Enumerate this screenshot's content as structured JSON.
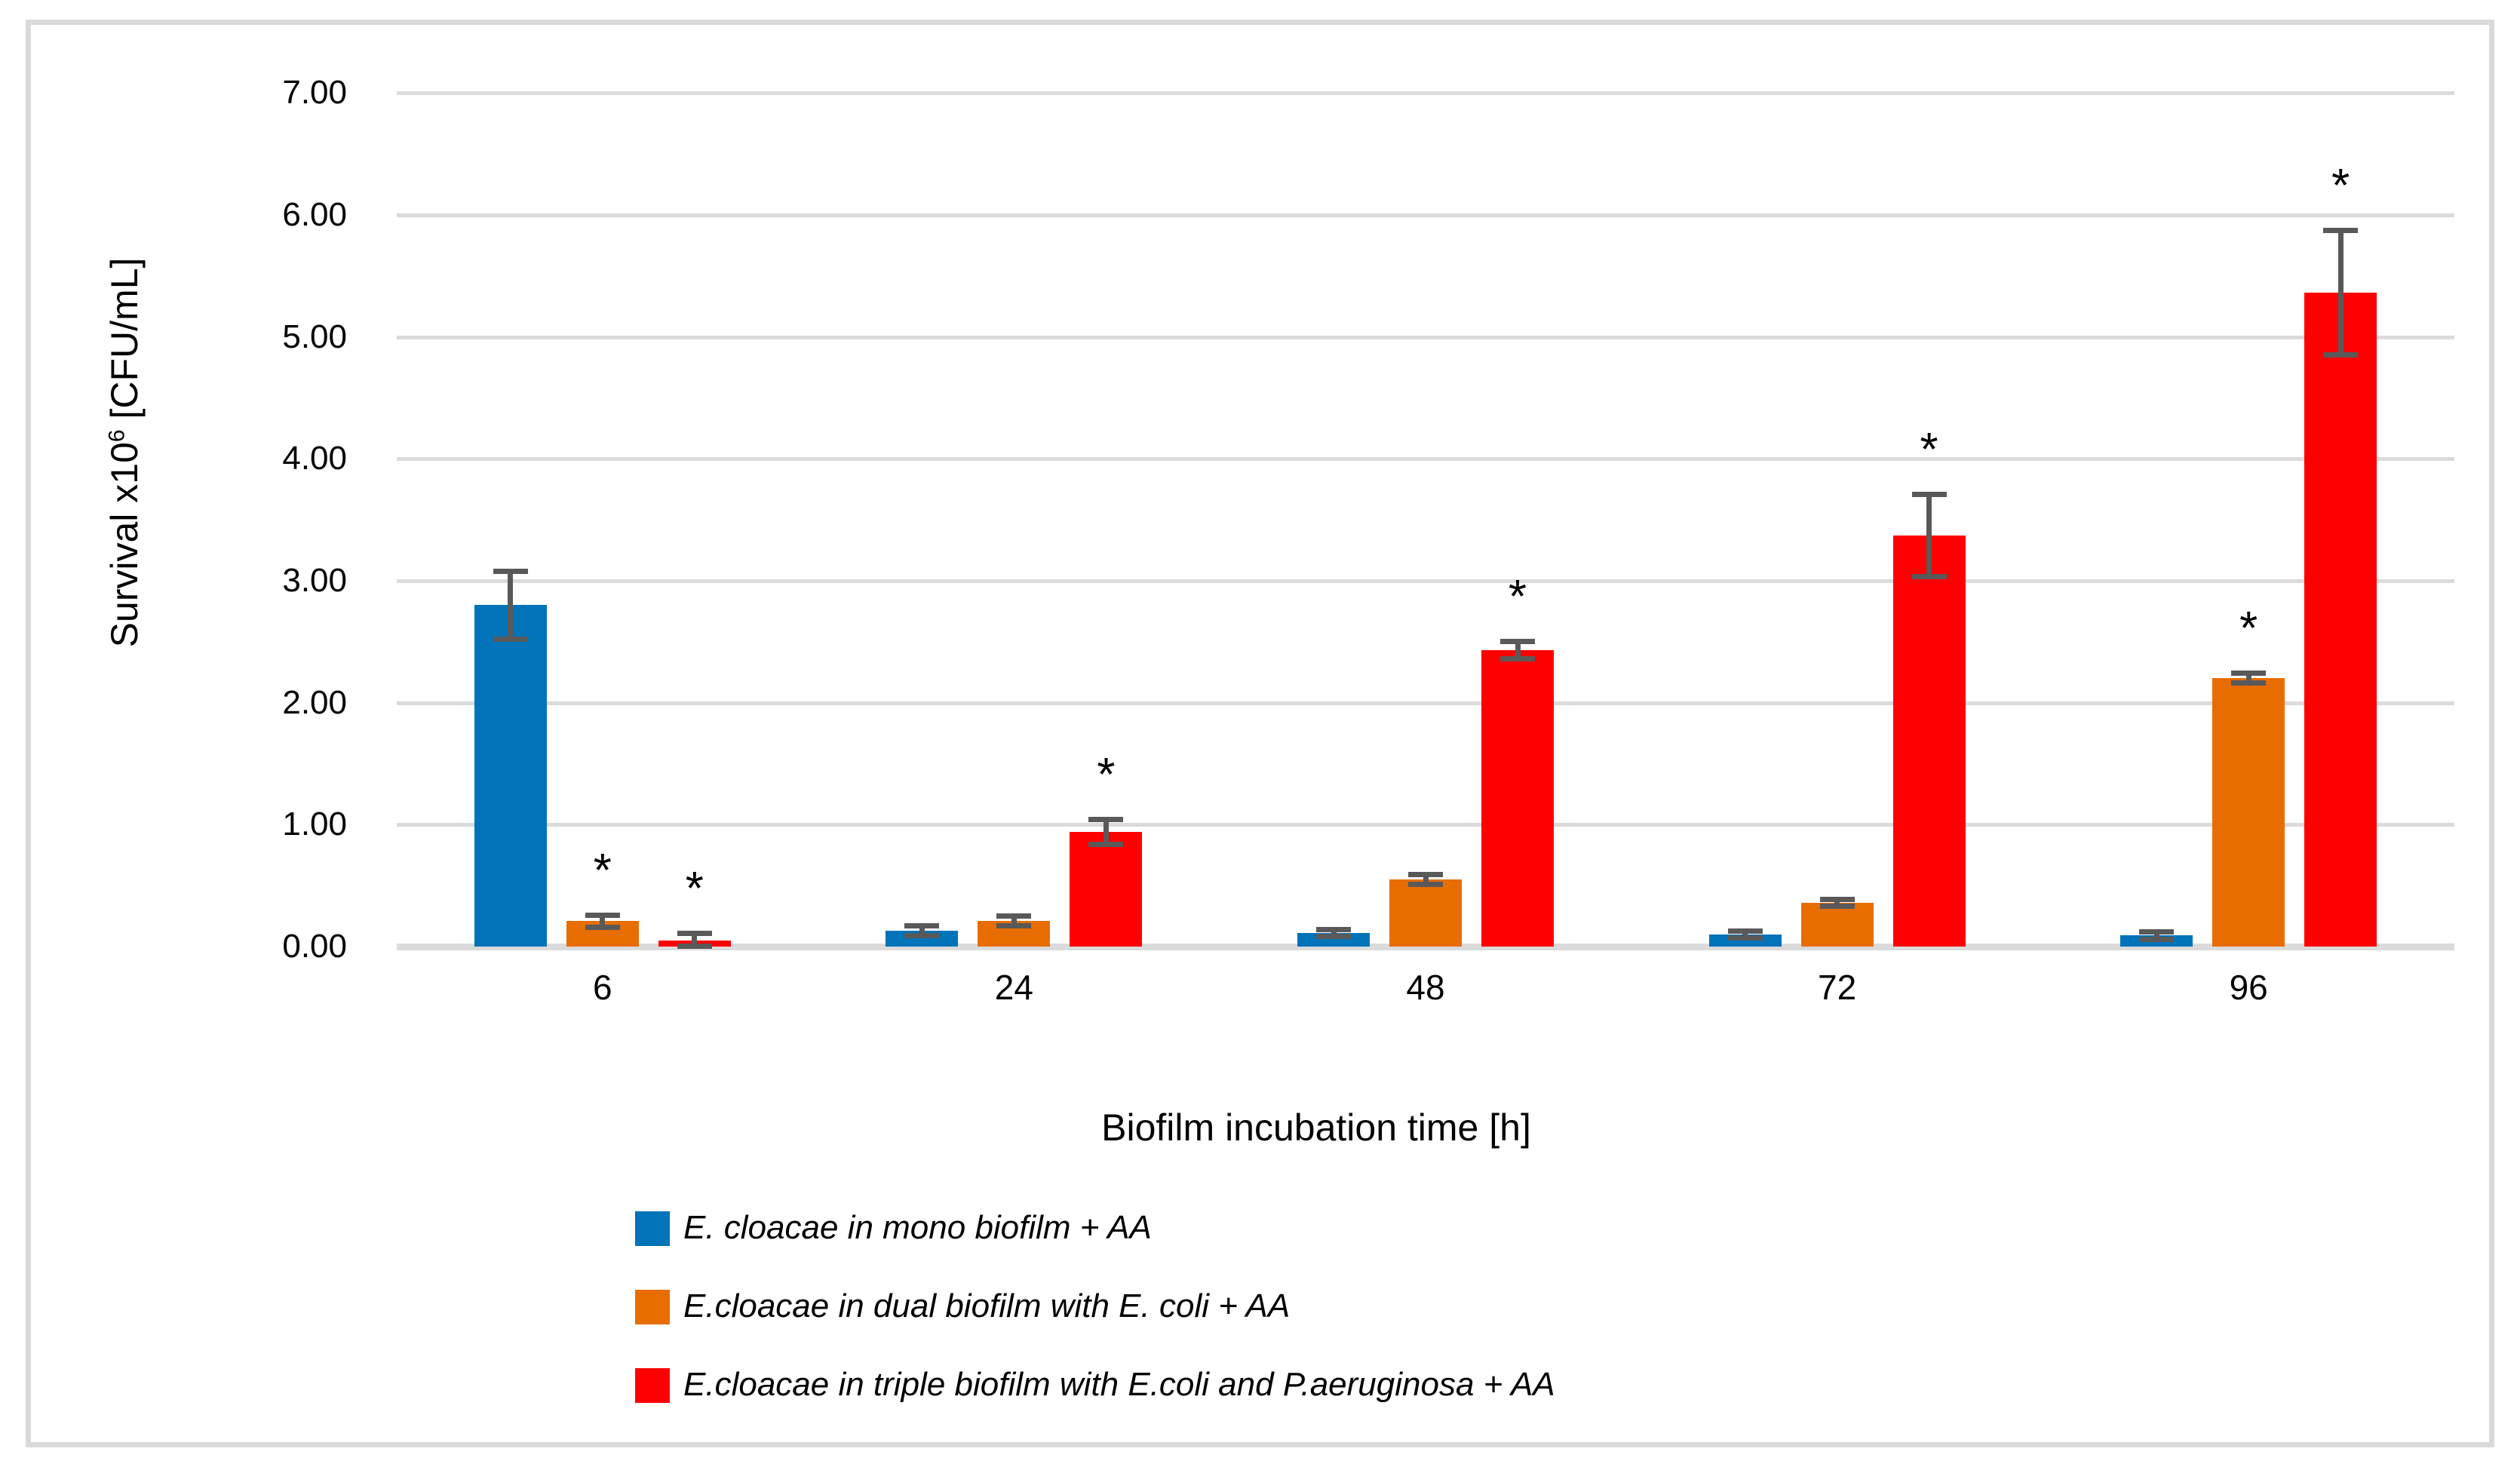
{
  "chart_data": {
    "type": "bar",
    "title": "",
    "xlabel": "Biofilm incubation time [h]",
    "ylabel_prefix": "Survival x10",
    "ylabel_sup": "6",
    "ylabel_suffix": " [CFU/mL]",
    "ylim": [
      0,
      7
    ],
    "ytick_step": 1,
    "ytick_labels": [
      "0.00",
      "1.00",
      "2.00",
      "3.00",
      "4.00",
      "5.00",
      "6.00",
      "7.00"
    ],
    "categories": [
      "6",
      "24",
      "48",
      "72",
      "96"
    ],
    "series": [
      {
        "name": "E. cloacae in mono biofilm + AA",
        "color": "#0173B9",
        "values": [
          2.8,
          0.13,
          0.11,
          0.1,
          0.09
        ],
        "errors": [
          0.27,
          0.03,
          0.02,
          0.02,
          0.02
        ],
        "significant": [
          false,
          false,
          false,
          false,
          false
        ]
      },
      {
        "name": "E.cloacae in dual biofilm with E. coli + AA",
        "color": "#E86D00",
        "values": [
          0.21,
          0.21,
          0.55,
          0.36,
          2.2
        ],
        "errors": [
          0.04,
          0.03,
          0.03,
          0.02,
          0.03
        ],
        "significant": [
          true,
          false,
          false,
          false,
          true
        ]
      },
      {
        "name": "E.cloacae in triple biofilm with E.coli and P.aeruginosa  + AA",
        "color": "#FF0000",
        "values": [
          0.05,
          0.94,
          2.43,
          3.37,
          5.36
        ],
        "errors": [
          0.05,
          0.09,
          0.06,
          0.33,
          0.5
        ],
        "significant": [
          true,
          true,
          true,
          true,
          true
        ]
      }
    ],
    "grid": true,
    "legend_position": "bottom-left",
    "significance_marker": "*",
    "error_bar_color": "#595959",
    "gridline_color": "#DBDBDB",
    "frame_border_color": "#D9D9D9",
    "text_color": "#000000"
  }
}
